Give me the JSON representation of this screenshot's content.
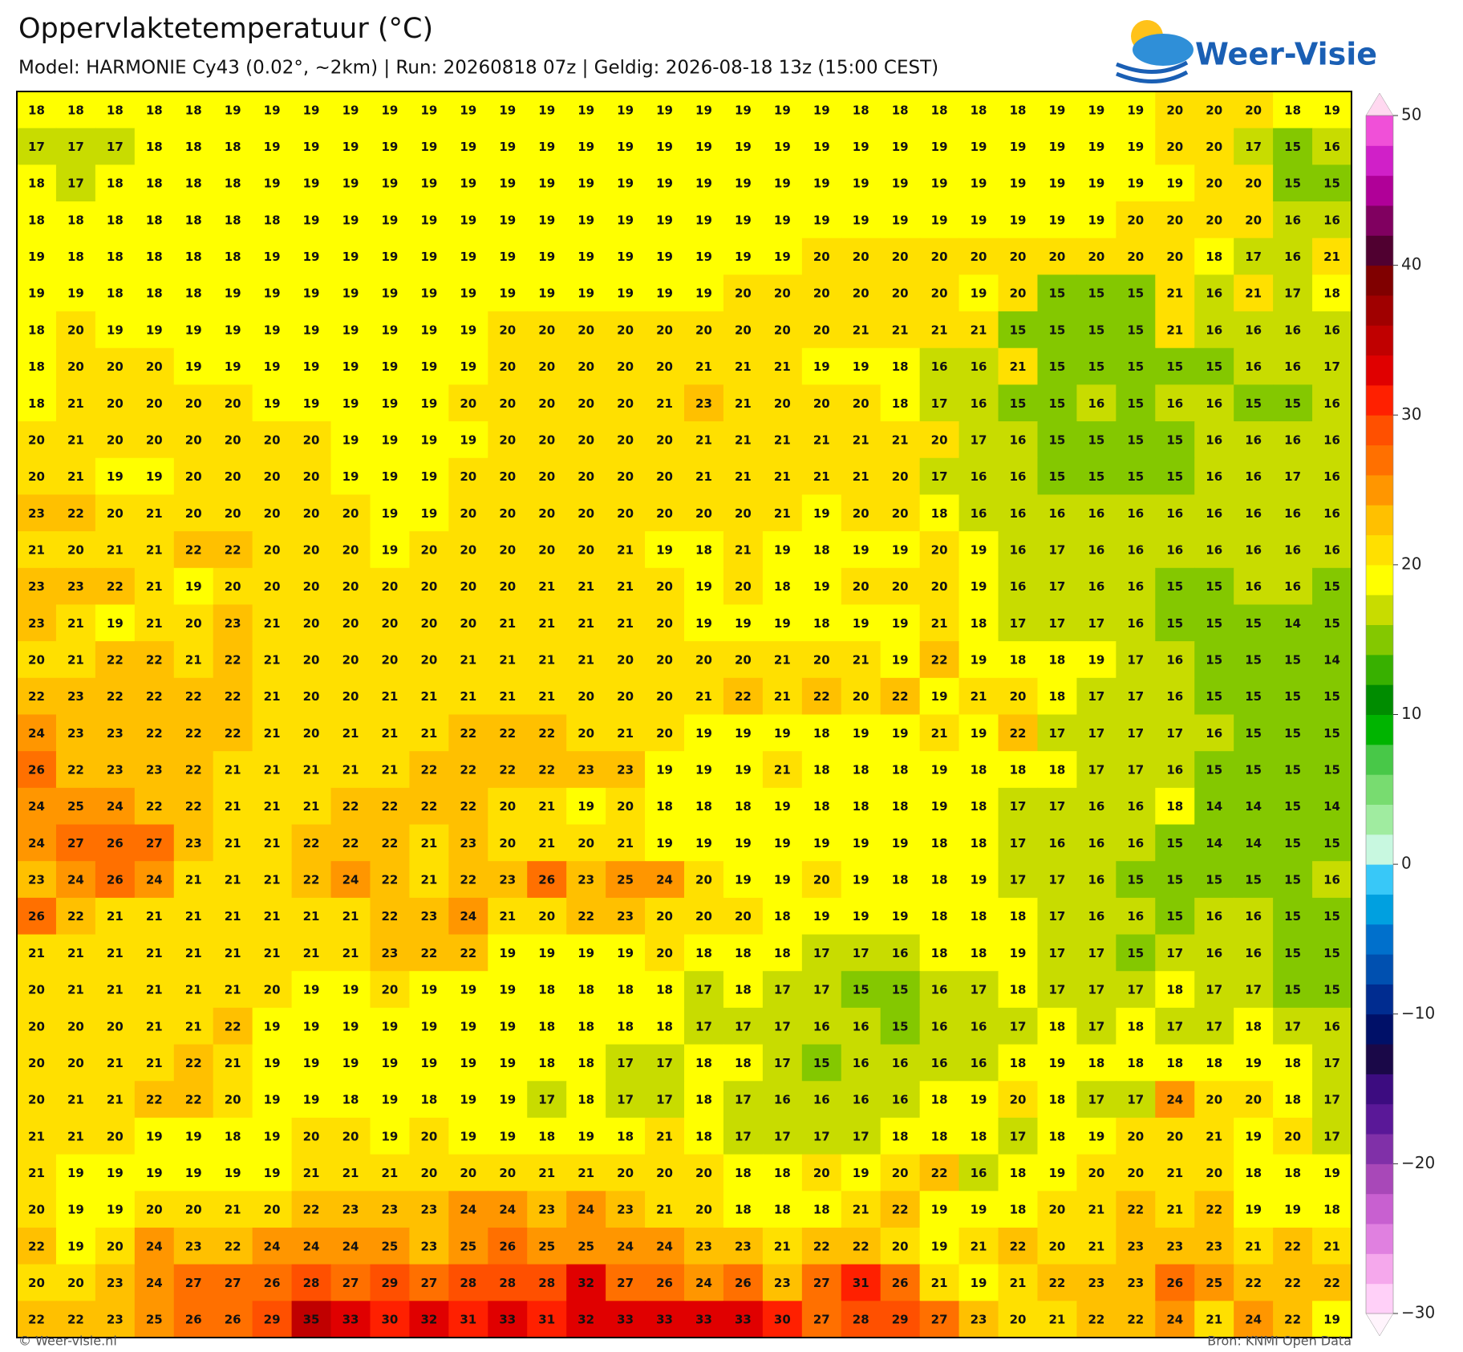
{
  "header": {
    "title": "Oppervlaktetemperatuur (°C)",
    "subtitle": "Model: HARMONIE Cy43 (0.02°, ~2km)  |  Run: 20260818 07z  |  Geldig: 2026-08-18 13z (15:00 CEST)",
    "logo": "Weer-Visie"
  },
  "map": {
    "grid": [
      [
        18,
        18,
        18,
        18,
        18,
        19,
        19,
        19,
        19,
        19,
        19,
        19,
        19,
        19,
        19,
        19,
        19,
        19,
        19,
        19,
        19,
        18,
        18,
        18,
        18,
        18,
        19,
        19,
        19,
        20,
        20,
        20,
        18,
        19
      ],
      [
        17,
        17,
        17,
        18,
        18,
        18,
        19,
        19,
        19,
        19,
        19,
        19,
        19,
        19,
        19,
        19,
        19,
        19,
        19,
        19,
        19,
        19,
        19,
        19,
        19,
        19,
        19,
        19,
        19,
        20,
        20,
        17,
        15,
        16
      ],
      [
        18,
        17,
        18,
        18,
        18,
        18,
        19,
        19,
        19,
        19,
        19,
        19,
        19,
        19,
        19,
        19,
        19,
        19,
        19,
        19,
        19,
        19,
        19,
        19,
        19,
        19,
        19,
        19,
        19,
        19,
        20,
        20,
        15,
        15
      ],
      [
        18,
        18,
        18,
        18,
        18,
        18,
        18,
        19,
        19,
        19,
        19,
        19,
        19,
        19,
        19,
        19,
        19,
        19,
        19,
        19,
        19,
        19,
        19,
        19,
        19,
        19,
        19,
        19,
        20,
        20,
        20,
        20,
        16,
        16
      ],
      [
        19,
        18,
        18,
        18,
        18,
        18,
        19,
        19,
        19,
        19,
        19,
        19,
        19,
        19,
        19,
        19,
        19,
        19,
        19,
        19,
        20,
        20,
        20,
        20,
        20,
        20,
        20,
        20,
        20,
        20,
        18,
        17,
        16,
        21
      ],
      [
        19,
        19,
        18,
        18,
        18,
        19,
        19,
        19,
        19,
        19,
        19,
        19,
        19,
        19,
        19,
        19,
        19,
        19,
        20,
        20,
        20,
        20,
        20,
        20,
        19,
        20,
        15,
        15,
        15,
        21,
        16,
        21,
        17,
        18
      ],
      [
        18,
        20,
        19,
        19,
        19,
        19,
        19,
        19,
        19,
        19,
        19,
        19,
        20,
        20,
        20,
        20,
        20,
        20,
        20,
        20,
        20,
        21,
        21,
        21,
        21,
        15,
        15,
        15,
        15,
        21,
        16,
        16,
        16,
        16
      ],
      [
        18,
        20,
        20,
        20,
        19,
        19,
        19,
        19,
        19,
        19,
        19,
        19,
        20,
        20,
        20,
        20,
        20,
        21,
        21,
        21,
        19,
        19,
        18,
        16,
        16,
        21,
        15,
        15,
        15,
        15,
        15,
        16,
        16,
        17
      ],
      [
        18,
        21,
        20,
        20,
        20,
        20,
        19,
        19,
        19,
        19,
        19,
        20,
        20,
        20,
        20,
        20,
        21,
        23,
        21,
        20,
        20,
        20,
        18,
        17,
        16,
        15,
        15,
        16,
        15,
        16,
        16,
        15,
        15,
        16
      ],
      [
        20,
        21,
        20,
        20,
        20,
        20,
        20,
        20,
        19,
        19,
        19,
        19,
        20,
        20,
        20,
        20,
        20,
        21,
        21,
        21,
        21,
        21,
        21,
        20,
        17,
        16,
        15,
        15,
        15,
        15,
        16,
        16,
        16,
        16
      ],
      [
        20,
        21,
        19,
        19,
        20,
        20,
        20,
        20,
        19,
        19,
        19,
        20,
        20,
        20,
        20,
        20,
        20,
        21,
        21,
        21,
        21,
        21,
        20,
        17,
        16,
        16,
        15,
        15,
        15,
        15,
        16,
        16,
        17,
        16
      ],
      [
        23,
        22,
        20,
        21,
        20,
        20,
        20,
        20,
        20,
        19,
        19,
        20,
        20,
        20,
        20,
        20,
        20,
        20,
        20,
        21,
        19,
        20,
        20,
        18,
        16,
        16,
        16,
        16,
        16,
        16,
        16,
        16,
        16,
        16
      ],
      [
        21,
        20,
        21,
        21,
        22,
        22,
        20,
        20,
        20,
        19,
        20,
        20,
        20,
        20,
        20,
        21,
        19,
        18,
        21,
        19,
        18,
        19,
        19,
        20,
        19,
        16,
        17,
        16,
        16,
        16,
        16,
        16,
        16,
        16
      ],
      [
        23,
        23,
        22,
        21,
        19,
        20,
        20,
        20,
        20,
        20,
        20,
        20,
        20,
        21,
        21,
        21,
        20,
        19,
        20,
        18,
        19,
        20,
        20,
        20,
        19,
        16,
        17,
        16,
        16,
        15,
        15,
        16,
        16,
        15
      ],
      [
        23,
        21,
        19,
        21,
        20,
        23,
        21,
        20,
        20,
        20,
        20,
        20,
        21,
        21,
        21,
        21,
        20,
        19,
        19,
        19,
        18,
        19,
        19,
        21,
        18,
        17,
        17,
        17,
        16,
        15,
        15,
        15,
        14,
        15
      ],
      [
        20,
        21,
        22,
        22,
        21,
        22,
        21,
        20,
        20,
        20,
        20,
        21,
        21,
        21,
        21,
        20,
        20,
        20,
        20,
        21,
        20,
        21,
        19,
        22,
        19,
        18,
        18,
        19,
        17,
        16,
        15,
        15,
        15,
        14
      ],
      [
        22,
        23,
        22,
        22,
        22,
        22,
        21,
        20,
        20,
        21,
        21,
        21,
        21,
        21,
        20,
        20,
        20,
        21,
        22,
        21,
        22,
        20,
        22,
        19,
        21,
        20,
        18,
        17,
        17,
        16,
        15,
        15,
        15,
        15
      ],
      [
        24,
        23,
        23,
        22,
        22,
        22,
        21,
        20,
        21,
        21,
        21,
        22,
        22,
        22,
        20,
        21,
        20,
        19,
        19,
        19,
        18,
        19,
        19,
        21,
        19,
        22,
        17,
        17,
        17,
        17,
        16,
        15,
        15,
        15
      ],
      [
        26,
        22,
        23,
        23,
        22,
        21,
        21,
        21,
        21,
        21,
        22,
        22,
        22,
        22,
        23,
        23,
        19,
        19,
        19,
        21,
        18,
        18,
        18,
        19,
        18,
        18,
        18,
        17,
        17,
        16,
        15,
        15,
        15,
        15
      ],
      [
        24,
        25,
        24,
        22,
        22,
        21,
        21,
        21,
        22,
        22,
        22,
        22,
        20,
        21,
        19,
        20,
        18,
        18,
        18,
        19,
        18,
        18,
        18,
        19,
        18,
        17,
        17,
        16,
        16,
        18,
        14,
        14,
        15,
        14
      ],
      [
        24,
        27,
        26,
        27,
        23,
        21,
        21,
        22,
        22,
        22,
        21,
        23,
        20,
        21,
        20,
        21,
        19,
        19,
        19,
        19,
        19,
        19,
        19,
        18,
        18,
        17,
        16,
        16,
        16,
        15,
        14,
        14,
        15,
        15
      ],
      [
        23,
        24,
        26,
        24,
        21,
        21,
        21,
        22,
        24,
        22,
        21,
        22,
        23,
        26,
        23,
        25,
        24,
        20,
        19,
        19,
        20,
        19,
        18,
        18,
        19,
        17,
        17,
        16,
        15,
        15,
        15,
        15,
        15,
        16
      ],
      [
        26,
        22,
        21,
        21,
        21,
        21,
        21,
        21,
        21,
        22,
        23,
        24,
        21,
        20,
        22,
        23,
        20,
        20,
        20,
        18,
        19,
        19,
        19,
        18,
        18,
        18,
        17,
        16,
        16,
        15,
        16,
        16,
        15,
        15
      ],
      [
        21,
        21,
        21,
        21,
        21,
        21,
        21,
        21,
        21,
        23,
        22,
        22,
        19,
        19,
        19,
        19,
        20,
        18,
        18,
        18,
        17,
        17,
        16,
        18,
        18,
        19,
        17,
        17,
        15,
        17,
        16,
        16,
        15,
        15
      ],
      [
        20,
        21,
        21,
        21,
        21,
        21,
        20,
        19,
        19,
        20,
        19,
        19,
        19,
        18,
        18,
        18,
        18,
        17,
        18,
        17,
        17,
        15,
        15,
        16,
        17,
        18,
        17,
        17,
        17,
        18,
        17,
        17,
        15,
        15
      ],
      [
        20,
        20,
        20,
        21,
        21,
        22,
        19,
        19,
        19,
        19,
        19,
        19,
        19,
        18,
        18,
        18,
        18,
        17,
        17,
        17,
        16,
        16,
        15,
        16,
        16,
        17,
        18,
        17,
        18,
        17,
        17,
        18,
        17,
        16
      ],
      [
        20,
        20,
        21,
        21,
        22,
        21,
        19,
        19,
        19,
        19,
        19,
        19,
        19,
        18,
        18,
        17,
        17,
        18,
        18,
        17,
        15,
        16,
        16,
        16,
        16,
        18,
        19,
        18,
        18,
        18,
        18,
        19,
        18,
        17
      ],
      [
        20,
        21,
        21,
        22,
        22,
        20,
        19,
        19,
        18,
        19,
        18,
        19,
        19,
        17,
        18,
        17,
        17,
        18,
        17,
        16,
        16,
        16,
        16,
        18,
        19,
        20,
        18,
        17,
        17,
        24,
        20,
        20,
        18,
        17
      ],
      [
        21,
        21,
        20,
        19,
        19,
        18,
        19,
        20,
        20,
        19,
        20,
        19,
        19,
        18,
        19,
        18,
        21,
        18,
        17,
        17,
        17,
        17,
        18,
        18,
        18,
        17,
        18,
        19,
        20,
        20,
        21,
        19,
        20,
        17
      ],
      [
        21,
        19,
        19,
        19,
        19,
        19,
        19,
        21,
        21,
        21,
        20,
        20,
        20,
        21,
        21,
        20,
        20,
        20,
        18,
        18,
        20,
        19,
        20,
        22,
        16,
        18,
        19,
        20,
        20,
        21,
        20,
        18,
        18,
        19
      ],
      [
        20,
        19,
        19,
        20,
        20,
        21,
        20,
        22,
        23,
        23,
        23,
        24,
        24,
        23,
        24,
        23,
        21,
        20,
        18,
        18,
        18,
        21,
        22,
        19,
        19,
        18,
        20,
        21,
        22,
        21,
        22,
        19,
        19,
        18
      ],
      [
        22,
        19,
        20,
        24,
        23,
        22,
        24,
        24,
        24,
        25,
        23,
        25,
        26,
        25,
        25,
        24,
        24,
        23,
        23,
        21,
        22,
        22,
        20,
        19,
        21,
        22,
        20,
        21,
        23,
        23,
        23,
        21,
        22,
        21
      ],
      [
        20,
        20,
        23,
        24,
        27,
        27,
        26,
        28,
        27,
        29,
        27,
        28,
        28,
        28,
        32,
        27,
        26,
        24,
        26,
        23,
        27,
        31,
        26,
        21,
        19,
        21,
        22,
        23,
        23,
        26,
        25,
        22,
        22,
        22
      ],
      [
        22,
        22,
        23,
        25,
        26,
        26,
        29,
        35,
        33,
        30,
        32,
        31,
        33,
        31,
        32,
        33,
        33,
        33,
        33,
        30,
        27,
        28,
        29,
        27,
        23,
        20,
        21,
        22,
        22,
        24,
        21,
        24,
        22,
        19
      ]
    ],
    "colorbar": {
      "range": [
        -30,
        50
      ],
      "ticks": [
        50,
        40,
        30,
        20,
        10,
        0,
        {
          "value": -10,
          "label": "−10"
        },
        {
          "value": -20,
          "label": "−20"
        },
        {
          "value": -30,
          "label": "−30"
        }
      ],
      "colors": [
        "#ffd0f8",
        "#f5a8ec",
        "#e080e0",
        "#c860d0",
        "#a848b8",
        "#8030a8",
        "#5a1898",
        "#3c0c80",
        "#1a0848",
        "#001068",
        "#002c90",
        "#0050b0",
        "#0070cc",
        "#00a0e0",
        "#38c8f8",
        "#c8f8e0",
        "#a0eca0",
        "#78dc70",
        "#48c848",
        "#00b400",
        "#008c00",
        "#38b000",
        "#84c800",
        "#c8dc00",
        "#ffff00",
        "#ffe000",
        "#ffc000",
        "#ff9600",
        "#ff7000",
        "#ff5000",
        "#ff2000",
        "#e00000",
        "#c00000",
        "#a00000",
        "#800000",
        "#500030",
        "#800060",
        "#b00098",
        "#d020c8",
        "#f050d8"
      ]
    }
  },
  "footer": {
    "credit": "© Weer-visie.nl",
    "source": "Bron: KNMI Open Data"
  }
}
